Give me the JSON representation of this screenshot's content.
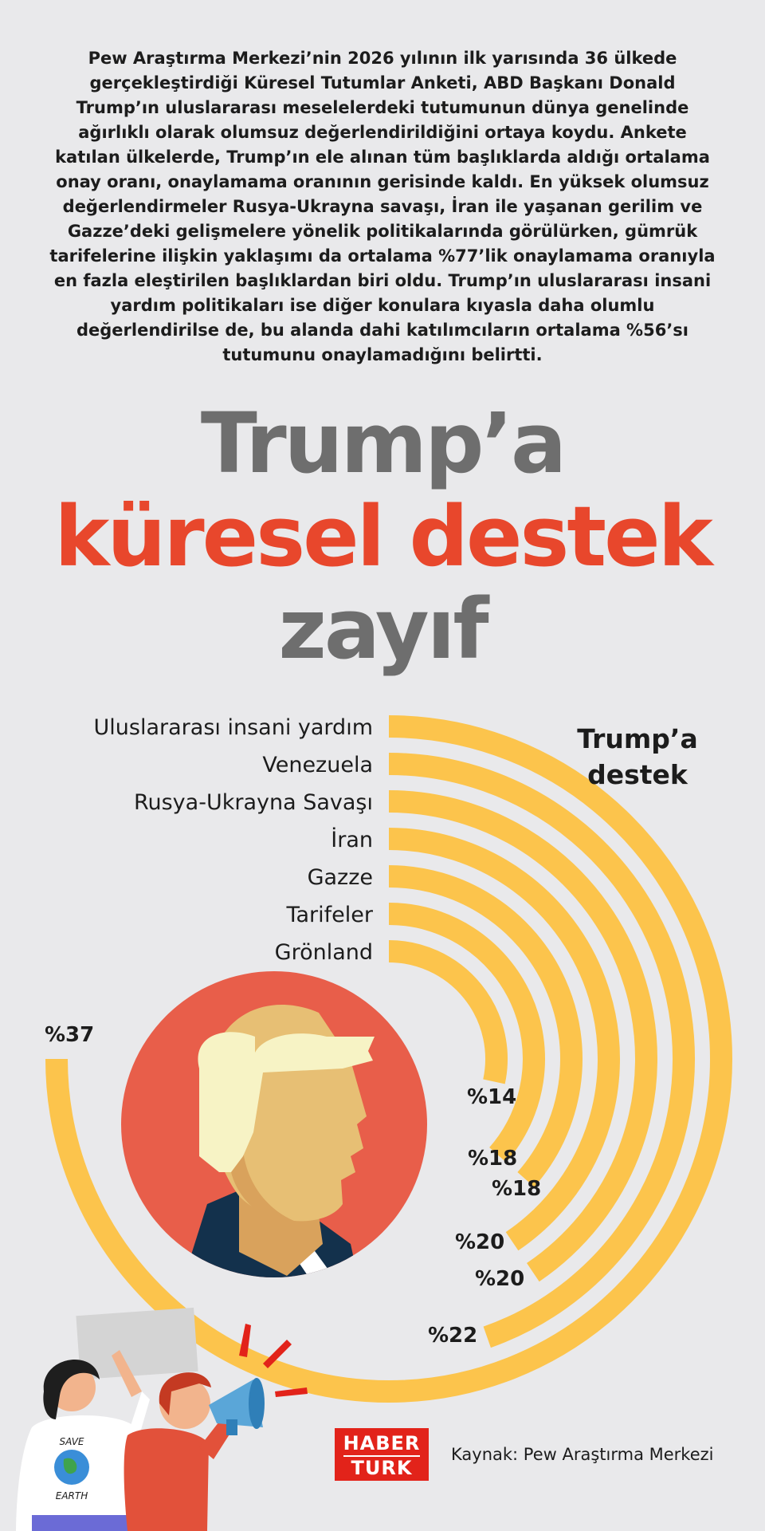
{
  "intro_text": "Pew Araştırma Merkezi’nin 2026 yılının ilk yarısında 36 ülkede gerçekleştirdiği Küresel Tutumlar Anketi, ABD Başkanı Donald Trump’ın uluslararası meselelerdeki tutumunun dünya genelinde ağırlıklı olarak olumsuz değerlendirildiğini ortaya koydu. Ankete katılan ülkelerde, Trump’ın ele alınan tüm başlıklarda aldığı ortalama onay oranı, onaylamama oranının gerisinde kaldı. En yüksek olumsuz değerlendirmeler Rusya-Ukrayna savaşı, İran ile yaşanan gerilim ve Gazze’deki gelişmelere yönelik politikalarında görülürken, gümrük tarifelerine ilişkin yaklaşımı da ortalama %77’lik onaylamama oranıyla en fazla eleştirilen başlıklardan biri oldu. Trump’ın uluslararası insani yardım politikaları ise diğer konulara kıyasla daha olumlu değerlendirilse de, bu alanda dahi katılımcıların ortalama %56’sı tutumunu onaylamadığını belirtti.",
  "title": {
    "line1": "Trump’a",
    "line2": "küresel destek",
    "line3": "zayıf"
  },
  "chart_data": {
    "type": "radial-bar",
    "legend": "Trump’a destek",
    "legend_lines": [
      "Trump’a",
      "destek"
    ],
    "unit": "%",
    "categories": [
      "Uluslararası insani yardım",
      "Venezuela",
      "Rusya-Ukrayna Savaşı",
      "İran",
      "Gazze",
      "Tarifeler",
      "Grönland"
    ],
    "values": [
      37,
      22,
      20,
      20,
      18,
      18,
      14
    ],
    "value_labels": [
      "%37",
      "%22",
      "%20",
      "%20",
      "%18",
      "%18",
      "%14"
    ],
    "bar_color": "#fcc44c"
  },
  "colors": {
    "background": "#e9e9eb",
    "accent": "#e8472c",
    "title_gray": "#6e6e6e",
    "bar": "#fcc44c",
    "portrait_circle": "#e85e4a"
  },
  "footer": {
    "logo_line1": "HABER",
    "logo_line2": "TURK",
    "source": "Kaynak: Pew Araştırma Merkezi"
  },
  "illustration": {
    "shirt_text_top": "SAVE",
    "shirt_text_bottom": "EARTH",
    "icons": [
      "trump-portrait-icon",
      "protester-woman-icon",
      "protester-man-icon",
      "megaphone-icon",
      "globe-icon"
    ]
  }
}
